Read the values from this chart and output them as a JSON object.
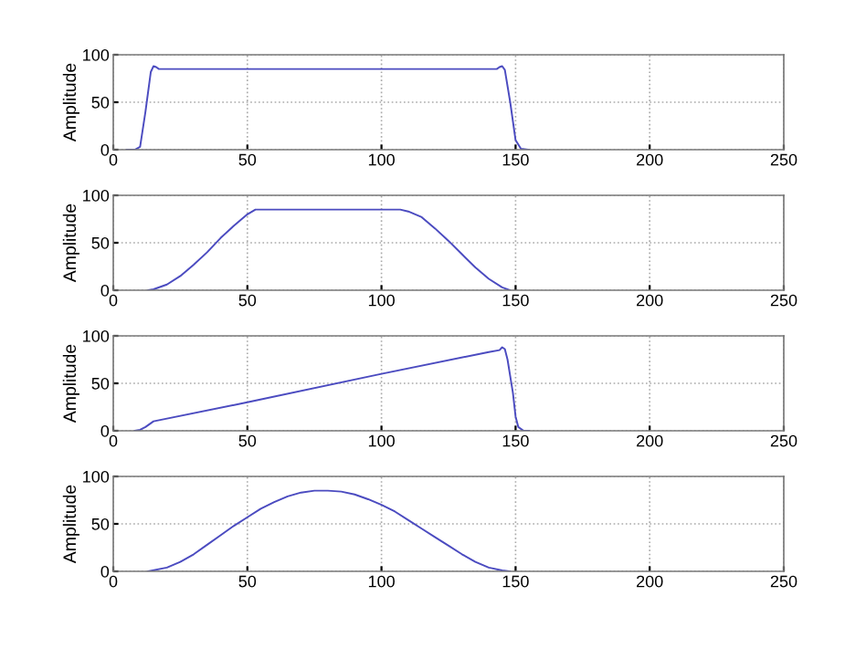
{
  "chart_data": [
    {
      "type": "line",
      "ylabel": "Amplitude",
      "xlim": [
        0,
        250
      ],
      "ylim": [
        0,
        100
      ],
      "xticks": [
        0,
        50,
        100,
        150,
        200,
        250
      ],
      "yticks": [
        0,
        50,
        100
      ],
      "grid": true,
      "line_style": "solid",
      "series": [
        {
          "color": "#4b4bc0",
          "x": [
            5,
            8,
            10,
            12,
            14,
            15,
            16,
            17,
            143,
            144,
            145,
            146,
            148,
            150,
            152,
            155
          ],
          "values": [
            0,
            0,
            3,
            40,
            82,
            88,
            87,
            85,
            85,
            87,
            88,
            84,
            50,
            10,
            1,
            0
          ]
        }
      ]
    },
    {
      "type": "line",
      "ylabel": "Amplitude",
      "xlim": [
        0,
        250
      ],
      "ylim": [
        0,
        100
      ],
      "xticks": [
        0,
        50,
        100,
        150,
        200,
        250
      ],
      "yticks": [
        0,
        50,
        100
      ],
      "grid": true,
      "line_style": "solid",
      "series": [
        {
          "color": "#4b4bc0",
          "x": [
            13,
            15,
            20,
            25,
            30,
            35,
            40,
            45,
            50,
            53,
            107,
            110,
            115,
            120,
            125,
            130,
            135,
            140,
            145,
            148
          ],
          "values": [
            0,
            1,
            6,
            15,
            27,
            40,
            55,
            68,
            80,
            85,
            85,
            83,
            77,
            65,
            52,
            38,
            24,
            12,
            3,
            0
          ]
        }
      ]
    },
    {
      "type": "line",
      "ylabel": "Amplitude",
      "xlim": [
        0,
        250
      ],
      "ylim": [
        0,
        100
      ],
      "xticks": [
        0,
        50,
        100,
        150,
        200,
        250
      ],
      "yticks": [
        0,
        50,
        100
      ],
      "grid": true,
      "line_style": "solid",
      "series": [
        {
          "color": "#4b4bc0",
          "x": [
            8,
            10,
            12,
            15,
            50,
            100,
            140,
            144,
            145,
            146,
            147,
            149,
            150,
            151,
            153,
            155
          ],
          "values": [
            0,
            1,
            4,
            10,
            30,
            60,
            83,
            85,
            88,
            86,
            75,
            40,
            15,
            4,
            0,
            0
          ]
        }
      ]
    },
    {
      "type": "line",
      "ylabel": "Amplitude",
      "xlim": [
        0,
        250
      ],
      "ylim": [
        0,
        100
      ],
      "xticks": [
        0,
        50,
        100,
        150,
        200,
        250
      ],
      "yticks": [
        0,
        50,
        100
      ],
      "grid": true,
      "line_style": "solid",
      "series": [
        {
          "color": "#4b4bc0",
          "x": [
            13,
            20,
            25,
            30,
            35,
            40,
            45,
            50,
            55,
            60,
            65,
            70,
            75,
            80,
            85,
            90,
            95,
            100,
            105,
            110,
            115,
            120,
            125,
            130,
            135,
            140,
            145,
            148
          ],
          "values": [
            0,
            4,
            10,
            18,
            28,
            38,
            48,
            57,
            66,
            73,
            79,
            83,
            85,
            85,
            84,
            81,
            76,
            70,
            63,
            54,
            45,
            36,
            27,
            18,
            10,
            4,
            1,
            0
          ]
        }
      ]
    }
  ]
}
